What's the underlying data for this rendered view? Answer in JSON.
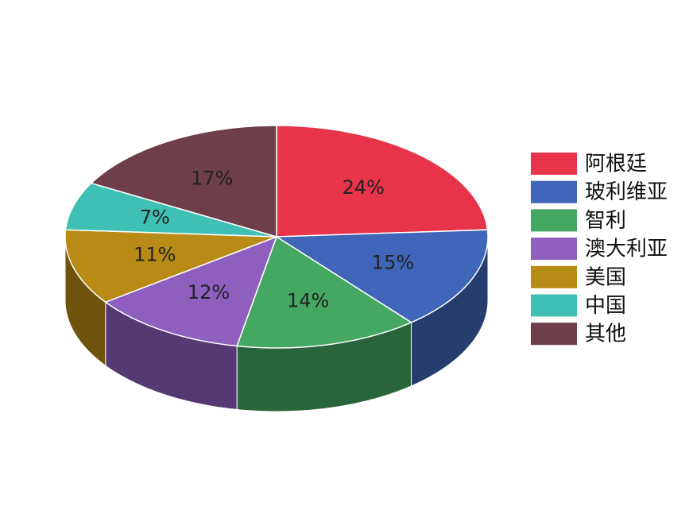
{
  "chart_data": {
    "type": "pie",
    "categories": [
      "阿根廷",
      "玻利维亚",
      "智利",
      "澳大利亚",
      "美国",
      "中国",
      "其他"
    ],
    "values": [
      24,
      15,
      14,
      12,
      11,
      7,
      17
    ],
    "value_labels": [
      "24%",
      "15%",
      "14%",
      "12%",
      "11%",
      "7%",
      "17%"
    ],
    "colors": [
      "#e8344a",
      "#3f66b8",
      "#45a862",
      "#8e5fbf",
      "#b88a16",
      "#3fc0b4",
      "#6e3e4a"
    ],
    "legend": "right"
  }
}
